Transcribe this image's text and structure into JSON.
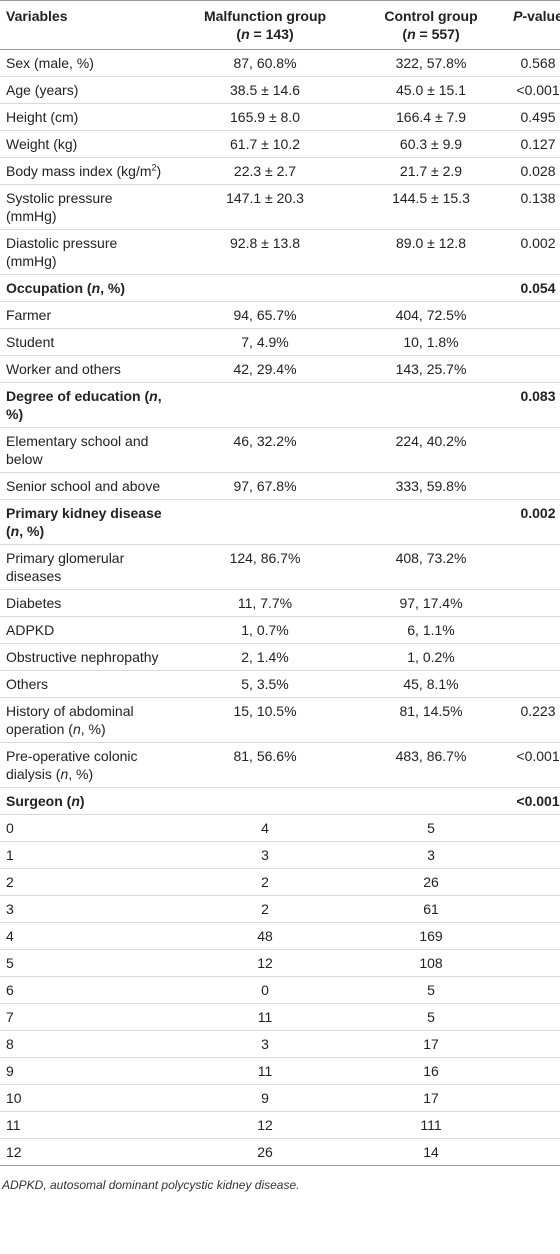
{
  "table": {
    "header": [
      [
        [
          "Variables"
        ]
      ],
      [
        [
          "Malfunction group"
        ],
        [
          "(",
          {
            "i": "n"
          },
          " = 143)"
        ]
      ],
      [
        [
          "Control group"
        ],
        [
          "(",
          {
            "i": "n"
          },
          " = 557)"
        ]
      ],
      [
        [
          {
            "i": "P"
          },
          "-value"
        ]
      ]
    ],
    "rows": [
      {
        "bold": false,
        "cells": [
          "Sex (male, %)",
          "87, 60.8%",
          "322, 57.8%",
          "0.568"
        ]
      },
      {
        "bold": false,
        "cells": [
          "Age (years)",
          "38.5 ± 14.6",
          "45.0 ± 15.1",
          "<0.001"
        ]
      },
      {
        "bold": false,
        "cells": [
          "Height (cm)",
          "165.9 ± 8.0",
          "166.4 ± 7.9",
          "0.495"
        ]
      },
      {
        "bold": false,
        "cells": [
          "Weight (kg)",
          "61.7 ± 10.2",
          "60.3 ± 9.9",
          "0.127"
        ]
      },
      {
        "bold": false,
        "cells": [
          [
            "Body mass index (kg/m",
            {
              "sup": "2"
            },
            ")"
          ],
          "22.3 ± 2.7",
          "21.7 ± 2.9",
          "0.028"
        ]
      },
      {
        "bold": false,
        "cells": [
          "Systolic pressure (mmHg)",
          "147.1 ± 20.3",
          "144.5 ± 15.3",
          "0.138"
        ]
      },
      {
        "bold": false,
        "cells": [
          "Diastolic pressure (mmHg)",
          "92.8 ± 13.8",
          "89.0 ± 12.8",
          "0.002"
        ]
      },
      {
        "bold": true,
        "cells": [
          [
            "Occupation (",
            {
              "i": "n"
            },
            ", %)"
          ],
          null,
          null,
          "0.054"
        ]
      },
      {
        "bold": false,
        "cells": [
          "Farmer",
          "94, 65.7%",
          "404, 72.5%",
          null
        ]
      },
      {
        "bold": false,
        "cells": [
          "Student",
          "7, 4.9%",
          "10, 1.8%",
          null
        ]
      },
      {
        "bold": false,
        "cells": [
          "Worker and others",
          "42, 29.4%",
          "143, 25.7%",
          null
        ]
      },
      {
        "bold": true,
        "cells": [
          [
            "Degree of education (",
            {
              "i": "n"
            },
            ", %)"
          ],
          null,
          null,
          "0.083"
        ]
      },
      {
        "bold": false,
        "cells": [
          "Elementary school and below",
          "46, 32.2%",
          "224, 40.2%",
          null
        ]
      },
      {
        "bold": false,
        "cells": [
          "Senior school and above",
          "97, 67.8%",
          "333, 59.8%",
          null
        ]
      },
      {
        "bold": true,
        "cells": [
          [
            "Primary kidney disease (",
            {
              "i": "n"
            },
            ", %)"
          ],
          null,
          null,
          "0.002"
        ]
      },
      {
        "bold": false,
        "cells": [
          "Primary glomerular diseases",
          "124, 86.7%",
          "408, 73.2%",
          null
        ]
      },
      {
        "bold": false,
        "cells": [
          "Diabetes",
          "11, 7.7%",
          "97, 17.4%",
          null
        ]
      },
      {
        "bold": false,
        "cells": [
          "ADPKD",
          "1, 0.7%",
          "6, 1.1%",
          null
        ]
      },
      {
        "bold": false,
        "cells": [
          "Obstructive nephropathy",
          "2, 1.4%",
          "1, 0.2%",
          null
        ]
      },
      {
        "bold": false,
        "cells": [
          "Others",
          "5, 3.5%",
          "45, 8.1%",
          null
        ]
      },
      {
        "bold": false,
        "cells": [
          [
            "History of abdominal operation (",
            {
              "i": "n"
            },
            ", %)"
          ],
          "15, 10.5%",
          "81, 14.5%",
          "0.223"
        ]
      },
      {
        "bold": false,
        "cells": [
          [
            "Pre-operative colonic dialysis (",
            {
              "i": "n"
            },
            ", %)"
          ],
          "81, 56.6%",
          "483, 86.7%",
          "<0.001"
        ]
      },
      {
        "bold": true,
        "cells": [
          [
            "Surgeon (",
            {
              "i": "n"
            },
            ")"
          ],
          null,
          null,
          "<0.001"
        ]
      },
      {
        "bold": false,
        "cells": [
          "0",
          "4",
          "5",
          null
        ]
      },
      {
        "bold": false,
        "cells": [
          "1",
          "3",
          "3",
          null
        ]
      },
      {
        "bold": false,
        "cells": [
          "2",
          "2",
          "26",
          null
        ]
      },
      {
        "bold": false,
        "cells": [
          "3",
          "2",
          "61",
          null
        ]
      },
      {
        "bold": false,
        "cells": [
          "4",
          "48",
          "169",
          null
        ]
      },
      {
        "bold": false,
        "cells": [
          "5",
          "12",
          "108",
          null
        ]
      },
      {
        "bold": false,
        "cells": [
          "6",
          "0",
          "5",
          null
        ]
      },
      {
        "bold": false,
        "cells": [
          "7",
          "11",
          "5",
          null
        ]
      },
      {
        "bold": false,
        "cells": [
          "8",
          "3",
          "17",
          null
        ]
      },
      {
        "bold": false,
        "cells": [
          "9",
          "11",
          "16",
          null
        ]
      },
      {
        "bold": false,
        "cells": [
          "10",
          "9",
          "17",
          null
        ]
      },
      {
        "bold": false,
        "cells": [
          "11",
          "12",
          "111",
          null
        ]
      },
      {
        "bold": false,
        "cells": [
          "12",
          "26",
          "14",
          null
        ]
      }
    ],
    "footnote": "ADPKD, autosomal dominant polycystic kidney disease."
  }
}
